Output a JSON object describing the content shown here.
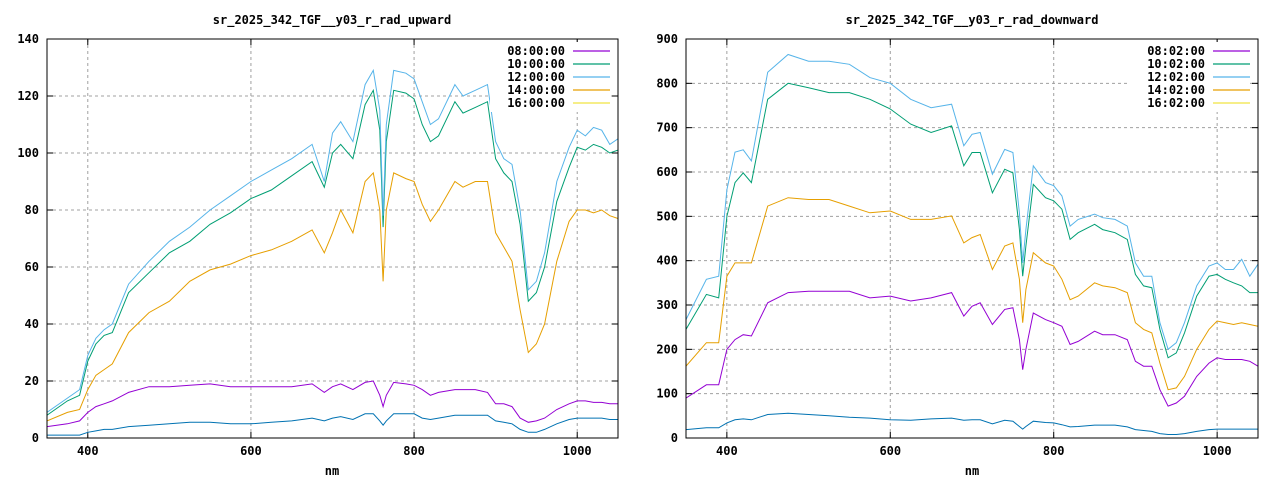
{
  "chart_data": [
    {
      "type": "line",
      "title": "sr_2025_342_TGF__y03_r_rad_upward",
      "xlabel": "nm",
      "ylabel": "",
      "xlim": [
        350,
        1050
      ],
      "ylim": [
        0,
        140
      ],
      "xticks": [
        400,
        600,
        800,
        1000
      ],
      "yticks": [
        0,
        20,
        40,
        60,
        80,
        100,
        120,
        140
      ],
      "grid": true,
      "legend_position": "top-right",
      "x": [
        350,
        375,
        390,
        400,
        410,
        420,
        430,
        450,
        475,
        500,
        525,
        550,
        575,
        600,
        625,
        650,
        675,
        690,
        700,
        710,
        725,
        740,
        750,
        758,
        762,
        766,
        775,
        790,
        800,
        810,
        820,
        830,
        850,
        860,
        875,
        890,
        900,
        910,
        920,
        930,
        940,
        950,
        960,
        975,
        990,
        1000,
        1010,
        1020,
        1030,
        1040,
        1050
      ],
      "series": [
        {
          "name": "08:00:00",
          "color": "#9400d3",
          "line_color": "#9400d3",
          "values": [
            4,
            5,
            6,
            9,
            11,
            12,
            13,
            16,
            18,
            18,
            18.5,
            19,
            18,
            18,
            18,
            18,
            19,
            16,
            18,
            19,
            17,
            19.5,
            20,
            15,
            11,
            15,
            19.5,
            19,
            18.5,
            17,
            15,
            16,
            17,
            17,
            17,
            16,
            12,
            12,
            11,
            7,
            5.5,
            6,
            7,
            10,
            12,
            13,
            13,
            12.5,
            12.5,
            12,
            12
          ]
        },
        {
          "name": "10:00:00",
          "color": "#009e73",
          "line_color": "#009e73",
          "values": [
            8,
            13,
            15,
            27,
            33,
            36,
            37,
            51,
            58,
            65,
            69,
            75,
            79,
            84,
            87,
            92,
            97,
            88,
            100,
            103,
            98,
            117,
            122,
            108,
            74,
            104,
            122,
            121,
            119,
            110,
            104,
            106,
            118,
            114,
            116,
            118,
            98,
            93,
            90,
            75,
            48,
            51,
            60,
            83,
            95,
            102,
            101,
            103,
            102,
            100,
            101
          ]
        },
        {
          "name": "12:00:00",
          "color": "#56b4e9",
          "line_color": "#56b4e9",
          "values": [
            9,
            14,
            17,
            29,
            35,
            38,
            40,
            54,
            62,
            69,
            74,
            80,
            85,
            90,
            94,
            98,
            103,
            90,
            107,
            111,
            104,
            124,
            129,
            115,
            78,
            110,
            129,
            128,
            126,
            118,
            110,
            112,
            124,
            120,
            122,
            124,
            104,
            98,
            96,
            80,
            52,
            55,
            65,
            90,
            102,
            108,
            106,
            109,
            108,
            103,
            105
          ]
        },
        {
          "name": "14:00:00",
          "color": "#e69f00",
          "line_color": "#e69f00",
          "values": [
            6,
            9,
            10,
            17,
            22,
            24,
            26,
            37,
            44,
            48,
            55,
            59,
            61,
            64,
            66,
            69,
            73,
            65,
            72,
            80,
            72,
            90,
            93,
            80,
            55,
            80,
            93,
            91,
            90,
            82,
            76,
            80,
            90,
            88,
            90,
            90,
            72,
            67,
            62,
            45,
            30,
            33,
            40,
            62,
            76,
            80,
            80,
            79,
            80,
            78,
            77
          ]
        },
        {
          "name": "16:00:00",
          "color": "#f0e442",
          "line_color": "#0072b2",
          "values": [
            1,
            1,
            1,
            2,
            2.5,
            3,
            3,
            4,
            4.5,
            5,
            5.5,
            5.5,
            5,
            5,
            5.5,
            6,
            7,
            6,
            7,
            7.5,
            6.5,
            8.5,
            8.5,
            6,
            4.5,
            6,
            8.5,
            8.5,
            8.5,
            7,
            6.5,
            7,
            8,
            8,
            8,
            8,
            6,
            5.5,
            5,
            3,
            2,
            2,
            3,
            5,
            6.5,
            7,
            7,
            7,
            7,
            6.5,
            6.5
          ]
        }
      ]
    },
    {
      "type": "line",
      "title": "sr_2025_342_TGF__y03_r_rad_downward",
      "xlabel": "nm",
      "ylabel": "",
      "xlim": [
        350,
        1050
      ],
      "ylim": [
        0,
        900
      ],
      "xticks": [
        400,
        600,
        800,
        1000
      ],
      "yticks": [
        0,
        100,
        200,
        300,
        400,
        500,
        600,
        700,
        800,
        900
      ],
      "grid": true,
      "legend_position": "top-right",
      "x": [
        350,
        375,
        390,
        400,
        410,
        420,
        430,
        450,
        475,
        500,
        525,
        550,
        575,
        600,
        625,
        650,
        675,
        690,
        700,
        710,
        725,
        740,
        750,
        758,
        762,
        766,
        775,
        790,
        800,
        810,
        820,
        830,
        850,
        860,
        875,
        890,
        900,
        910,
        920,
        930,
        940,
        950,
        960,
        975,
        990,
        1000,
        1010,
        1020,
        1030,
        1040,
        1050
      ],
      "series": [
        {
          "name": "08:02:00",
          "color": "#9400d3",
          "line_color": "#9400d3",
          "values": [
            90,
            120,
            120,
            200,
            222,
            233,
            230,
            305,
            328,
            331,
            331,
            331,
            316,
            320,
            309,
            316,
            328,
            275,
            297,
            305,
            256,
            290,
            294,
            222,
            154,
            200,
            282,
            267,
            260,
            252,
            211,
            218,
            241,
            233,
            233,
            222,
            173,
            162,
            162,
            109,
            72,
            79,
            94,
            139,
            169,
            181,
            177,
            177,
            177,
            173,
            162
          ]
        },
        {
          "name": "10:02:00",
          "color": "#009e73",
          "line_color": "#009e73",
          "values": [
            245,
            324,
            316,
            500,
            576,
            598,
            576,
            764,
            800,
            790,
            779,
            779,
            764,
            742,
            708,
            689,
            704,
            614,
            644,
            644,
            553,
            606,
            598,
            470,
            365,
            433,
            572,
            542,
            535,
            516,
            448,
            463,
            482,
            470,
            463,
            448,
            369,
            343,
            339,
            245,
            181,
            192,
            237,
            320,
            365,
            369,
            358,
            350,
            343,
            328,
            328
          ]
        },
        {
          "name": "12:02:00",
          "color": "#56b4e9",
          "line_color": "#56b4e9",
          "values": [
            267,
            358,
            365,
            560,
            645,
            650,
            625,
            825,
            865,
            850,
            850,
            843,
            813,
            800,
            764,
            745,
            753,
            659,
            685,
            689,
            595,
            651,
            644,
            508,
            395,
            470,
            614,
            576,
            569,
            546,
            478,
            493,
            505,
            497,
            493,
            478,
            395,
            365,
            365,
            260,
            200,
            215,
            260,
            343,
            388,
            395,
            380,
            380,
            403,
            365,
            392
          ]
        },
        {
          "name": "14:02:00",
          "color": "#e69f00",
          "line_color": "#e69f00",
          "values": [
            162,
            215,
            215,
            365,
            395,
            395,
            395,
            523,
            542,
            538,
            538,
            523,
            508,
            512,
            493,
            493,
            501,
            440,
            452,
            459,
            380,
            433,
            440,
            358,
            260,
            335,
            418,
            395,
            388,
            358,
            312,
            320,
            350,
            343,
            339,
            328,
            260,
            245,
            237,
            169,
            109,
            113,
            139,
            200,
            245,
            264,
            260,
            256,
            260,
            256,
            252
          ]
        },
        {
          "name": "16:02:00",
          "color": "#f0e442",
          "line_color": "#0072b2",
          "values": [
            19,
            23,
            23,
            34,
            41,
            43,
            41,
            53,
            56,
            53,
            50,
            47,
            45,
            41,
            40,
            43,
            45,
            40,
            41,
            41,
            32,
            40,
            38,
            26,
            20,
            26,
            38,
            35,
            34,
            30,
            25,
            26,
            29,
            29,
            29,
            25,
            19,
            17,
            15,
            10,
            8,
            8,
            10,
            15,
            19,
            20,
            20,
            20,
            20,
            20,
            20
          ]
        }
      ]
    }
  ]
}
